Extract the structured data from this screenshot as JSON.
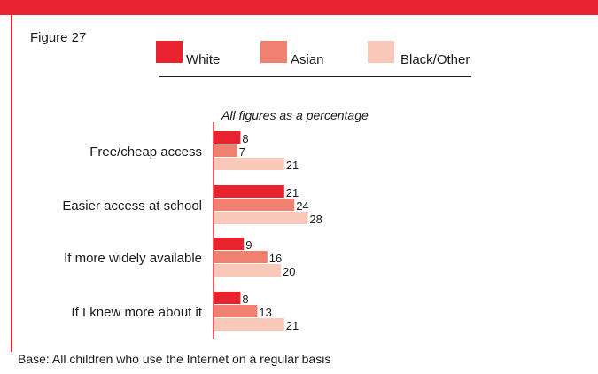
{
  "figure_label": "Figure 27",
  "footnote": "Base: All children who use the Internet on a regular basis",
  "colors": {
    "accent": "#e8222f",
    "white": "#e8222f",
    "asian": "#f08070",
    "black_other": "#f9c8b8"
  },
  "chart_data": {
    "type": "bar",
    "orientation": "horizontal",
    "subtitle": "All figures as a percentage",
    "categories": [
      "Free/cheap access",
      "Easier access at school",
      "If more widely available",
      "If I knew more about it"
    ],
    "series": [
      {
        "name": "White",
        "values": [
          8,
          21,
          9,
          8
        ]
      },
      {
        "name": "Asian",
        "values": [
          7,
          24,
          16,
          13
        ]
      },
      {
        "name": "Black/Other",
        "values": [
          21,
          28,
          20,
          21
        ]
      }
    ],
    "xlabel": "",
    "ylabel": "",
    "grid": false,
    "legend": "top"
  }
}
